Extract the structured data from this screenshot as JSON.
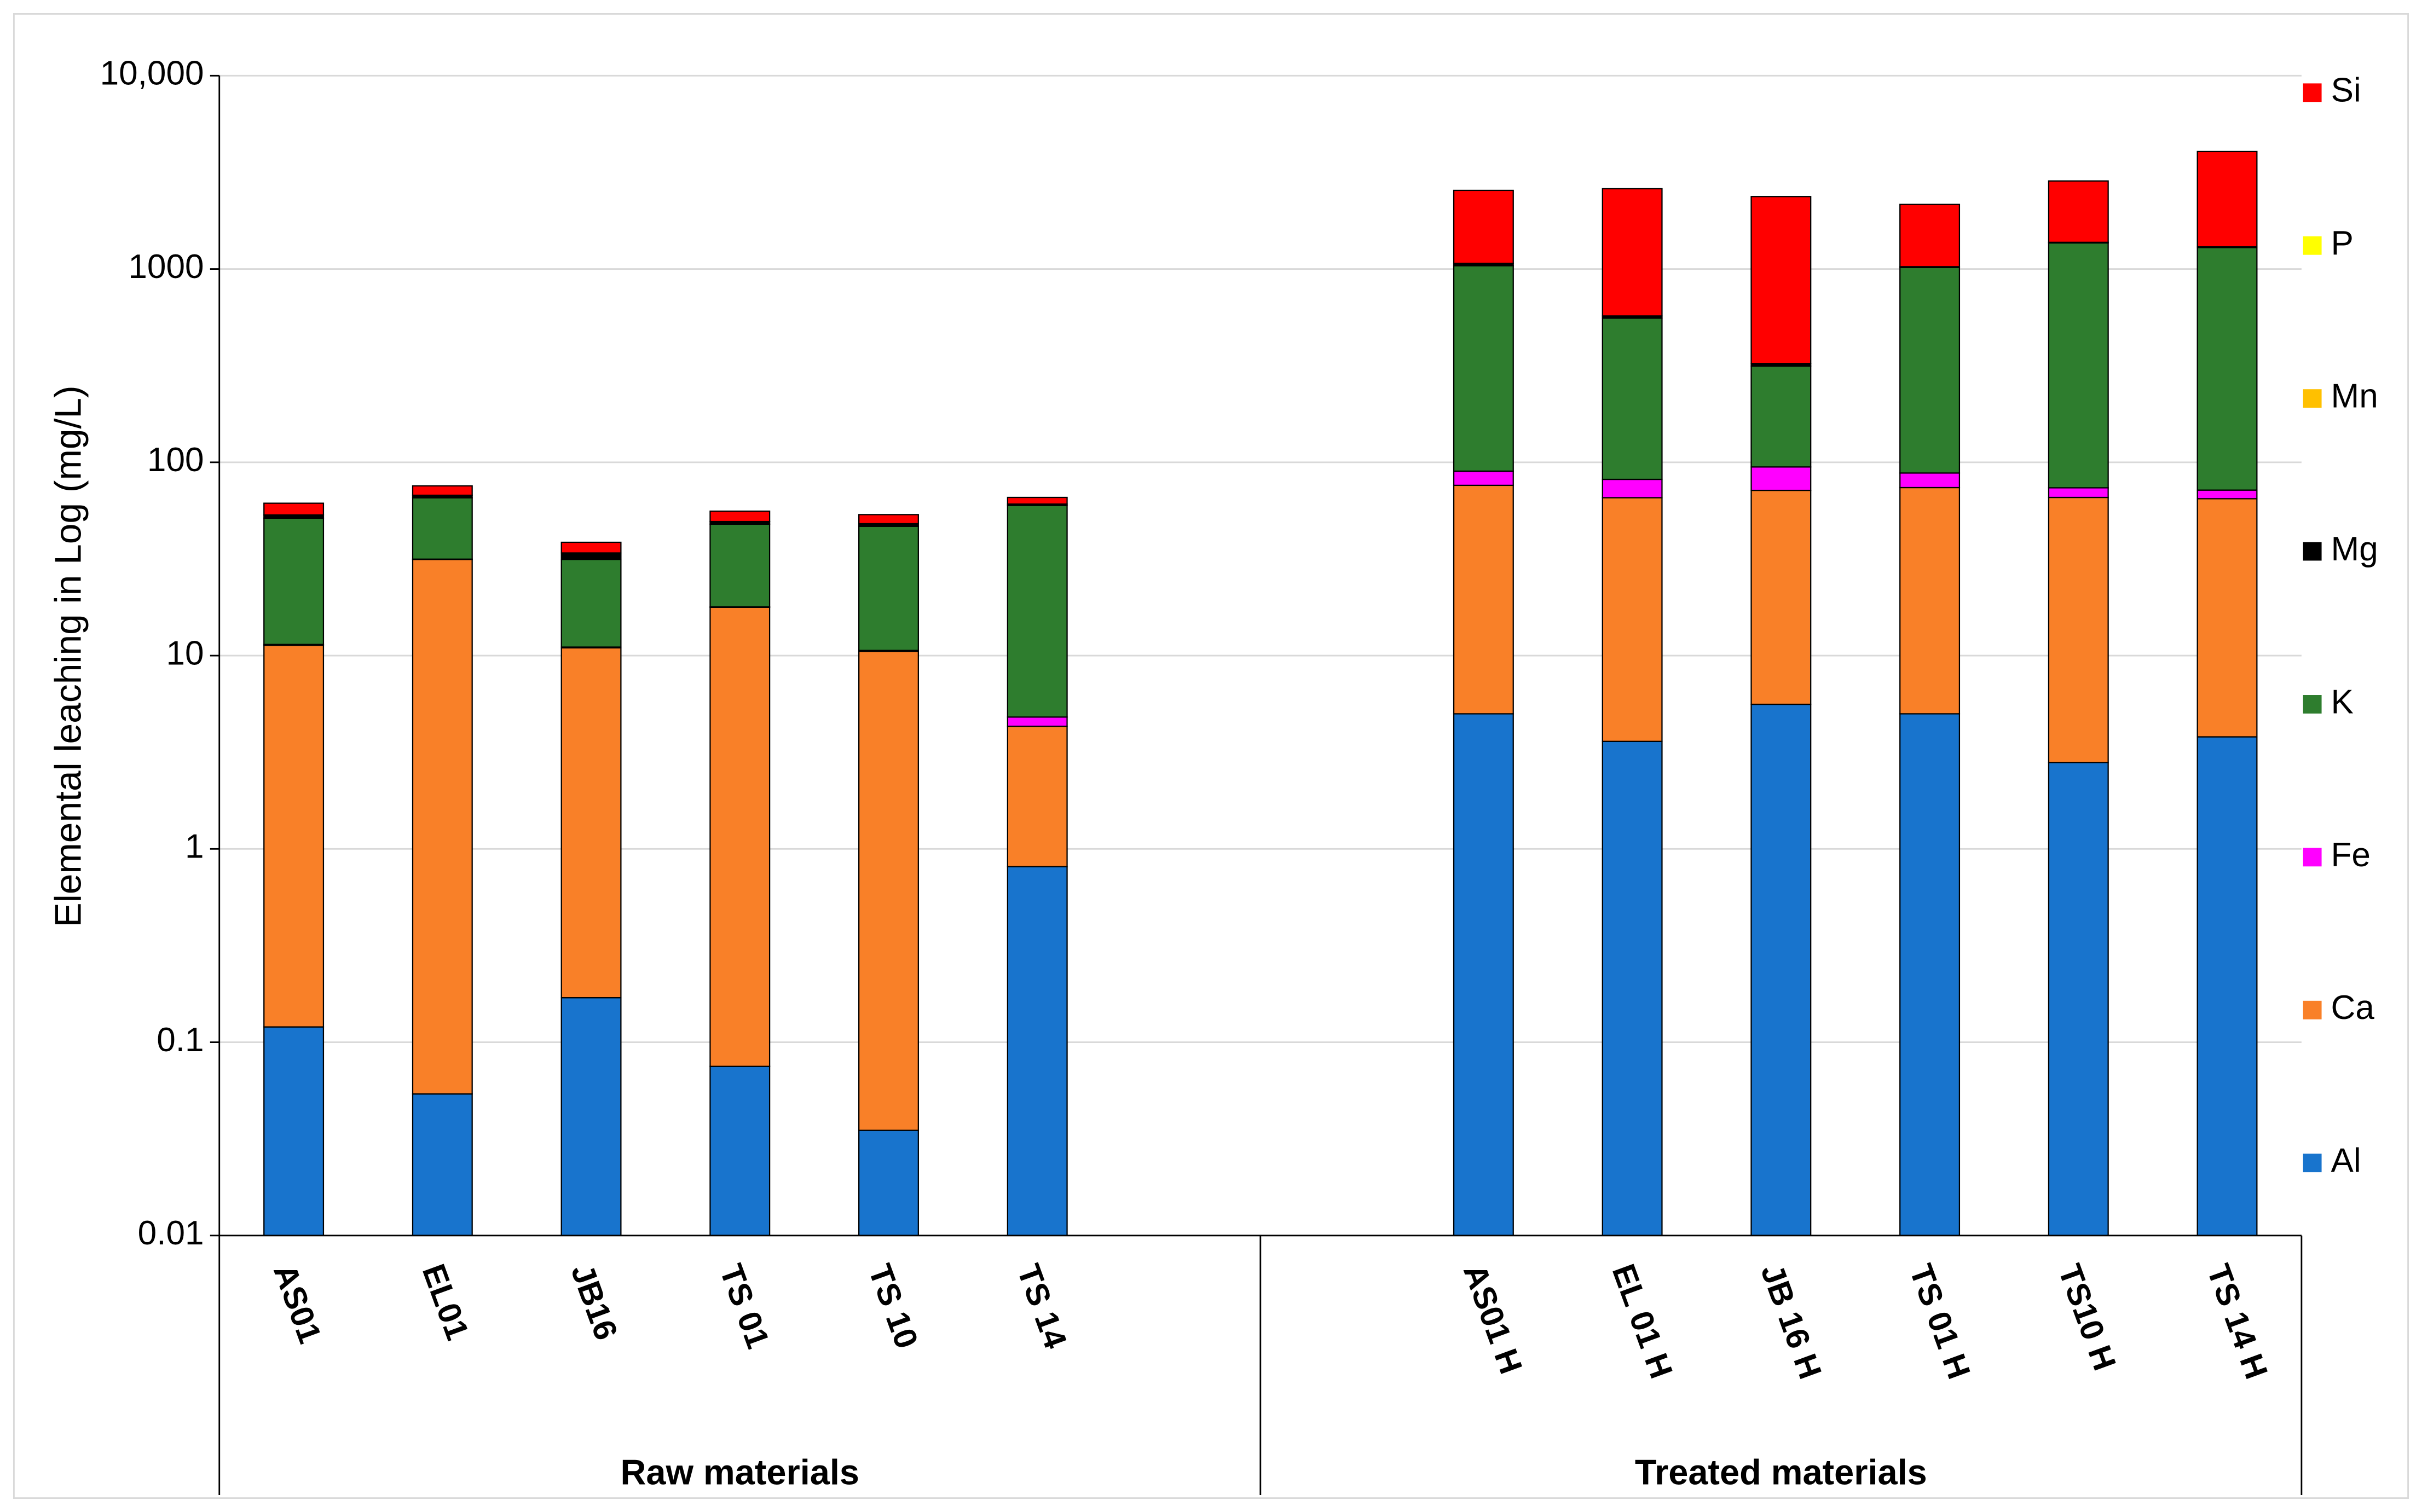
{
  "chart_data": {
    "type": "stacked_bar",
    "y_label": "Elemental leaching in Log (mg/L)",
    "log_scale": true,
    "grid": true,
    "legend": "right",
    "ylim": [
      0.01,
      10000
    ],
    "yticks": [
      0.01,
      0.1,
      1,
      10,
      100,
      1000,
      {
        "value": 10000,
        "label": "10,000"
      }
    ],
    "categories": [
      "AS01",
      "EL01",
      "JB16",
      "TS 01",
      "TS 10",
      "TS 14",
      null,
      null,
      "AS01 H",
      "EL 01 H",
      "JB 16 H",
      "TS 01 H",
      "TS10 H",
      "TS 14 H"
    ],
    "groups": [
      "Raw materials",
      "Treated materials"
    ],
    "series": [
      {
        "name": "Al",
        "color": "#1874cd",
        "values": [
          0.12,
          0.054,
          0.17,
          0.075,
          0.035,
          0.81,
          null,
          null,
          5,
          3.6,
          5.6,
          5,
          2.8,
          3.8
        ]
      },
      {
        "name": "Ca",
        "color": "#f98028",
        "values": [
          11.2,
          31.4,
          10.8,
          17.7,
          10.5,
          3.5,
          null,
          null,
          71,
          62,
          66,
          69,
          63,
          61
        ]
      },
      {
        "name": "Fe",
        "color": "#ff00ff",
        "values": [
          0.1,
          0.1,
          0.1,
          0.1,
          0.1,
          0.5,
          null,
          null,
          14,
          16,
          23,
          14,
          8,
          7
        ]
      },
      {
        "name": "K",
        "color": "#2e7d2e",
        "values": [
          40,
          34,
          20.4,
          30,
          36,
          55,
          null,
          null,
          950,
          475,
          220,
          930,
          1290,
          1220
        ]
      },
      {
        "name": "Mg",
        "color": "#000000",
        "values": [
          2,
          2,
          2.5,
          1.5,
          1.5,
          1,
          null,
          null,
          30,
          15,
          10,
          10,
          10,
          10
        ]
      },
      {
        "name": "Mn",
        "color": "#ffc000",
        "values": [
          0,
          0,
          0,
          0,
          0,
          0,
          null,
          null,
          0,
          0,
          0,
          0,
          0,
          0
        ]
      },
      {
        "name": "P",
        "color": "#ffff00",
        "values": [
          0,
          0,
          0,
          0,
          0,
          0,
          null,
          null,
          0,
          0,
          0,
          0,
          0,
          0
        ]
      },
      {
        "name": "Si",
        "color": "#ff0000",
        "values": [
          8,
          8,
          4.6,
          6.5,
          5.5,
          5,
          null,
          null,
          1480,
          2030,
          2045,
          1130,
          1480,
          2750
        ]
      }
    ]
  }
}
